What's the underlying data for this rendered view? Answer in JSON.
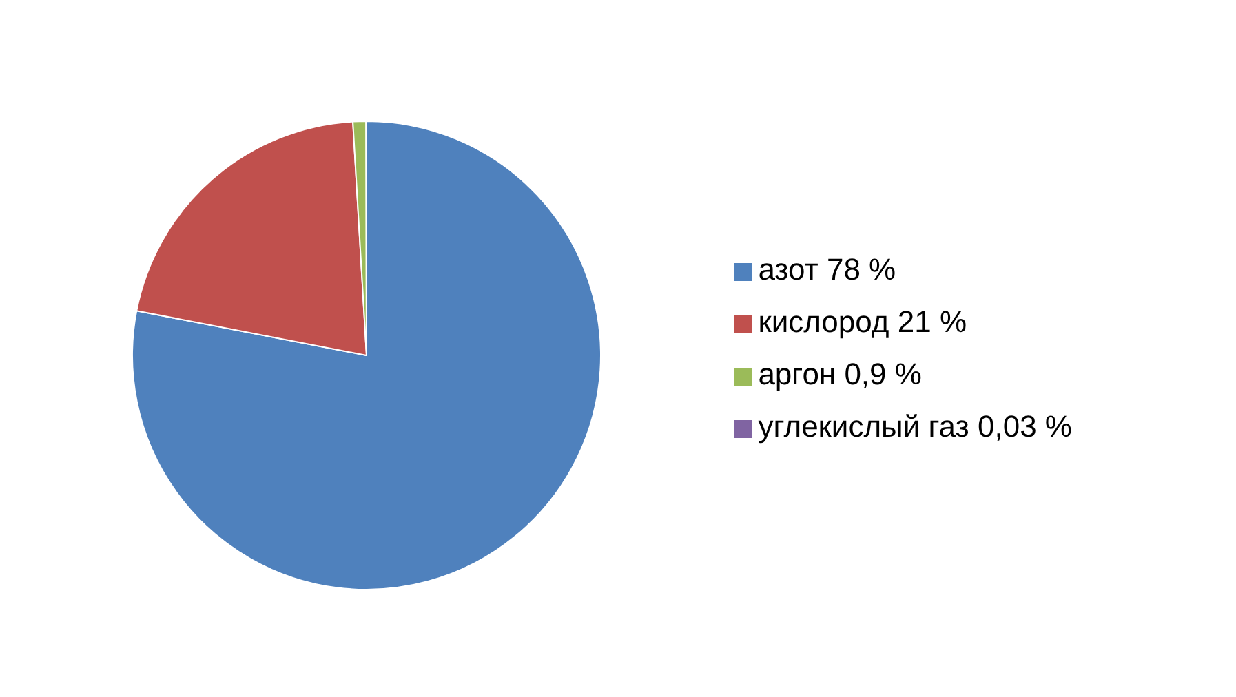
{
  "chart_data": {
    "type": "pie",
    "categories": [
      "азот 78 %",
      "кислород 21 %",
      "аргон 0,9 %",
      "углекислый газ 0,03 %"
    ],
    "values": [
      78,
      21,
      0.9,
      0.03
    ],
    "colors": [
      "#4f81bd",
      "#c0504d",
      "#9bbb59",
      "#8064a2"
    ],
    "legend": "right"
  }
}
